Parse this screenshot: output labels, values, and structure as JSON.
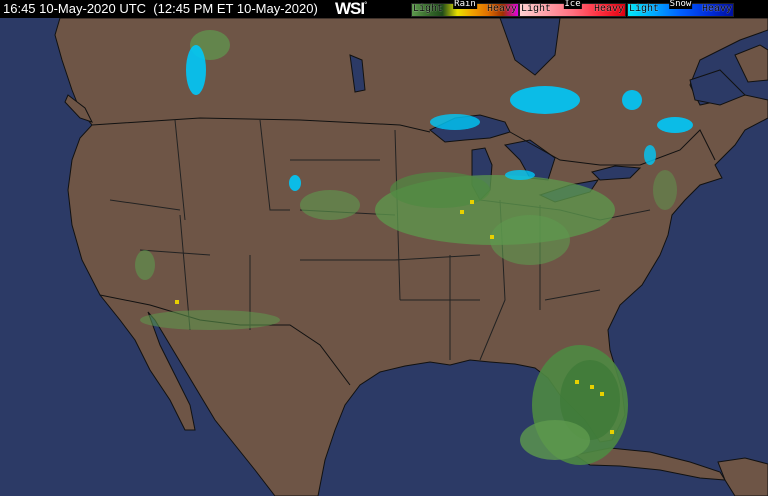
{
  "header": {
    "timestamp": "16:45 10-May-2020 UTC  (12:45 PM ET 10-May-2020)",
    "brand": "WSI",
    "brand_mark": "°"
  },
  "legend": [
    {
      "type": "Rain",
      "light": "Light",
      "heavy": "Heavy",
      "colors": [
        "#5e9a4e",
        "#3a6e2e",
        "#1e4a1a",
        "#e8e000",
        "#f0a000",
        "#e07000",
        "#a03000",
        "#e000e0"
      ]
    },
    {
      "type": "Ice",
      "light": "Light",
      "heavy": "Heavy",
      "colors": [
        "#ffd0d0",
        "#ffa0a8",
        "#ff7080",
        "#ff3040",
        "#e00010"
      ]
    },
    {
      "type": "Snow",
      "light": "Light",
      "heavy": "Heavy",
      "colors": [
        "#00e8f8",
        "#00a8ff",
        "#0060ff",
        "#0030e0",
        "#0010a0"
      ]
    }
  ],
  "colors": {
    "land": "#6e5546",
    "water": "#2c3a66",
    "borders": "#111111"
  }
}
